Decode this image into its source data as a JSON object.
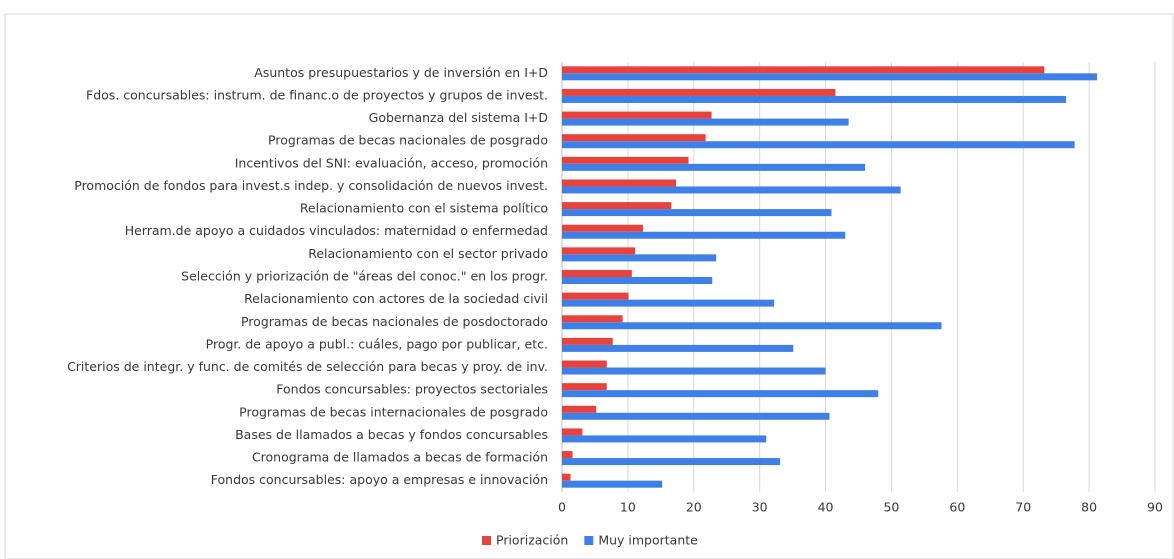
{
  "chart_data": {
    "type": "barh",
    "categories": [
      "Asuntos presupuestarios y de inversión en I+D",
      "Fdos. concursables: instrum. de financ.o de proyectos y grupos de invest.",
      "Gobernanza del sistema I+D",
      "Programas de becas nacionales de posgrado",
      "Incentivos del SNI: evaluación, acceso, promoción",
      "Promoción de fondos para invest.s indep. y consolidación de nuevos invest.",
      "Relacionamiento con el sistema político",
      "Herram.de apoyo a cuidados vinculados: maternidad o enfermedad",
      "Relacionamiento con el sector privado",
      "Selección y priorización de \"áreas del conoc.\" en los progr.",
      "Relacionamiento con actores de la sociedad civil",
      "Programas de becas nacionales de posdoctorado",
      "Progr. de apoyo a publ.: cuáles, pago por publicar, etc.",
      "Criterios de integr. y func. de comités de selección para becas y proy. de inv.",
      "Fondos concursables: proyectos sectoriales",
      "Programas de becas internacionales de posgrado",
      "Bases de llamados a becas y fondos concursables",
      "Cronograma de llamados a becas de formación",
      "Fondos concursables: apoyo a empresas e innovación"
    ],
    "series": [
      {
        "name": "Priorización",
        "color": "#e8423c",
        "values": [
          73.2,
          41.5,
          22.7,
          21.8,
          19.2,
          17.3,
          16.6,
          12.3,
          11.1,
          10.6,
          10.1,
          9.2,
          7.7,
          6.8,
          6.8,
          5.2,
          3.1,
          1.6,
          1.3
        ]
      },
      {
        "name": "Muy importante",
        "color": "#3f7fe8",
        "values": [
          81.2,
          76.5,
          43.5,
          77.8,
          46.0,
          51.4,
          40.9,
          43.0,
          23.4,
          22.8,
          32.2,
          57.6,
          35.1,
          40.0,
          48.0,
          40.6,
          31.0,
          33.1,
          15.2
        ]
      }
    ],
    "xlim": [
      0,
      90
    ],
    "xticks": [
      0,
      10,
      20,
      30,
      40,
      50,
      60,
      70,
      80,
      90
    ],
    "grid": true,
    "legend": "bottom"
  }
}
